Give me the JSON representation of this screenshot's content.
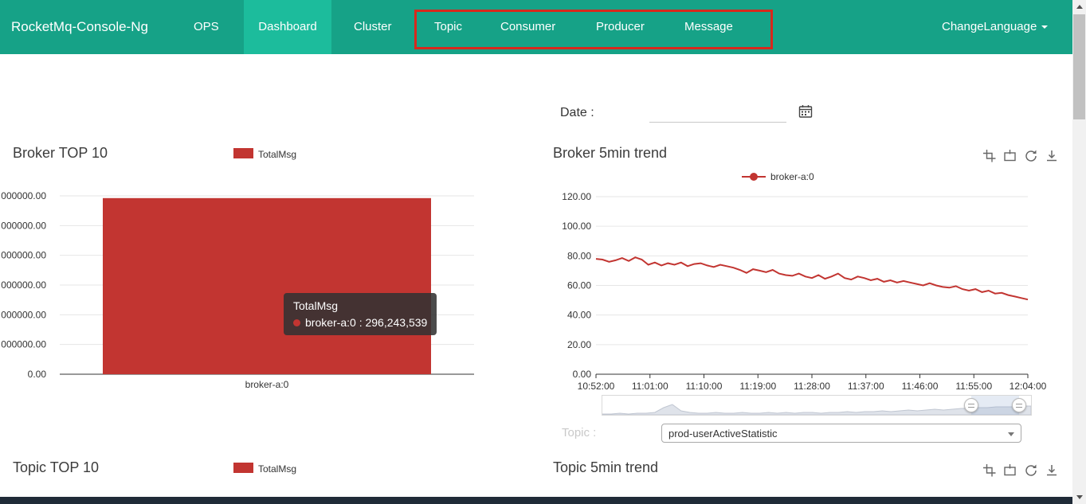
{
  "navbar": {
    "brand": "RocketMq-Console-Ng",
    "items": [
      {
        "label": "OPS",
        "active": false
      },
      {
        "label": "Dashboard",
        "active": true
      },
      {
        "label": "Cluster",
        "active": false
      },
      {
        "label": "Topic",
        "active": false
      },
      {
        "label": "Consumer",
        "active": false
      },
      {
        "label": "Producer",
        "active": false
      },
      {
        "label": "Message",
        "active": false
      }
    ],
    "language_menu": "ChangeLanguage",
    "colors": {
      "background": "#16a287",
      "active_item": "#1cbc9c"
    }
  },
  "annotation": {
    "color": "#d8281c",
    "wraps": [
      "Topic",
      "Consumer",
      "Producer",
      "Message"
    ]
  },
  "date_filter": {
    "label": "Date :",
    "value": ""
  },
  "topic_filter": {
    "label": "Topic :",
    "selected": "prod-userActiveStatistic"
  },
  "panels": {
    "broker_top10": {
      "title": "Broker TOP 10",
      "legend": "TotalMsg"
    },
    "broker_trend": {
      "title": "Broker 5min trend",
      "legend": "broker-a:0"
    },
    "topic_top10": {
      "title": "Topic TOP 10",
      "legend": "TotalMsg"
    },
    "topic_trend": {
      "title": "Topic 5min trend"
    }
  },
  "tooltip": {
    "title": "TotalMsg",
    "text": "broker-a:0 : 296,243,539"
  },
  "toolbox_icons": [
    "data-zoom",
    "zoom-reset",
    "restore",
    "save-image"
  ],
  "colors": {
    "series_red": "#c23531",
    "grid_line": "#e6e6e6",
    "axis": "#333333"
  },
  "chart_data": [
    {
      "type": "bar",
      "title": "Broker TOP 10",
      "legend": [
        "TotalMsg"
      ],
      "categories": [
        "broker-a:0"
      ],
      "series": [
        {
          "name": "TotalMsg",
          "values": [
            296243539
          ]
        }
      ],
      "ylim": [
        0,
        300000000
      ],
      "y_tick_labels_displayed": [
        "000000.00",
        "000000.00",
        "000000.00",
        "000000.00",
        "000000.00",
        "000000.00",
        "0.00"
      ],
      "tooltip": "broker-a:0 : 296,243,539",
      "grid": true,
      "legend_position": "top"
    },
    {
      "type": "line",
      "title": "Broker 5min trend",
      "legend": [
        "broker-a:0"
      ],
      "x_tick_labels": [
        "10:52:00",
        "11:01:00",
        "11:10:00",
        "11:19:00",
        "11:28:00",
        "11:37:00",
        "11:46:00",
        "11:55:00",
        "12:04:00"
      ],
      "ylim": [
        0,
        120
      ],
      "y_tick_labels": [
        "120.00",
        "100.00",
        "80.00",
        "60.00",
        "40.00",
        "20.00",
        "0.00"
      ],
      "series": [
        {
          "name": "broker-a:0",
          "values": [
            78,
            77.5,
            76,
            77,
            78.5,
            76.5,
            79,
            77.5,
            74,
            75.5,
            73.5,
            75,
            74,
            75.5,
            73,
            74.5,
            75,
            73.5,
            72.5,
            74,
            73,
            72,
            70.5,
            68.5,
            71,
            70,
            69,
            70.5,
            68,
            67,
            66.5,
            68,
            66,
            65,
            67,
            64.5,
            66,
            68,
            65,
            64,
            66,
            65,
            63.5,
            64.5,
            62.5,
            63.5,
            62,
            63,
            62,
            61,
            60,
            61.5,
            60,
            59,
            58.5,
            59.5,
            57.5,
            56.5,
            57.5,
            55.5,
            56.5,
            54.5,
            55,
            53.5,
            52.5,
            51.5,
            50.5
          ]
        }
      ],
      "grid": true,
      "legend_position": "top",
      "has_datazoom_slider": true
    }
  ]
}
